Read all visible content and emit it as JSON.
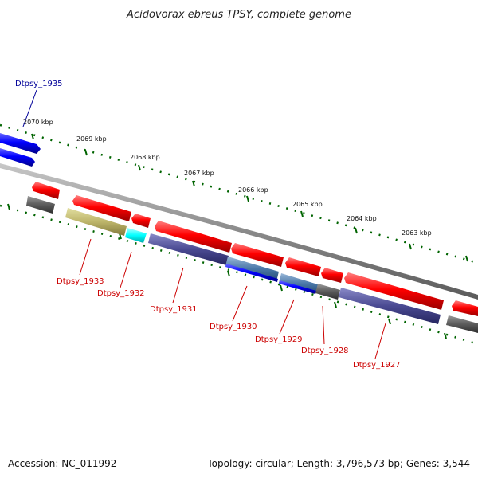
{
  "title": "Acidovorax ebreus TPSY, complete genome",
  "footer": {
    "accession": "Accession: NC_011992",
    "summary": "Topology: circular; Length: 3,796,573 bp; Genes: 3,544"
  },
  "colors": {
    "forward_cds": "#ff0000",
    "reverse_cds": "#0000ff",
    "gene_bar": "#555555",
    "ruler": "#006400",
    "backbone": "#8a8a8a",
    "label_forward": "#000099",
    "label_reverse": "#cc0000"
  },
  "scale": {
    "unit": "kbp",
    "ticks": [
      {
        "value": 2070,
        "label": "2070 kbp"
      },
      {
        "value": 2069,
        "label": "2069 kbp"
      },
      {
        "value": 2068,
        "label": "2068 kbp"
      },
      {
        "value": 2067,
        "label": "2067 kbp"
      },
      {
        "value": 2066,
        "label": "2066 kbp"
      },
      {
        "value": 2065,
        "label": "2065 kbp"
      },
      {
        "value": 2064,
        "label": "2064 kbp"
      },
      {
        "value": 2063,
        "label": "2063 kbp"
      }
    ]
  },
  "genes": [
    {
      "id": "Dtpsy_1935",
      "strand": "forward"
    },
    {
      "id": "Dtpsy_1933",
      "strand": "reverse"
    },
    {
      "id": "Dtpsy_1932",
      "strand": "reverse"
    },
    {
      "id": "Dtpsy_1931",
      "strand": "reverse"
    },
    {
      "id": "Dtpsy_1930",
      "strand": "reverse"
    },
    {
      "id": "Dtpsy_1929",
      "strand": "reverse"
    },
    {
      "id": "Dtpsy_1928",
      "strand": "reverse"
    },
    {
      "id": "Dtpsy_1927",
      "strand": "reverse"
    }
  ]
}
